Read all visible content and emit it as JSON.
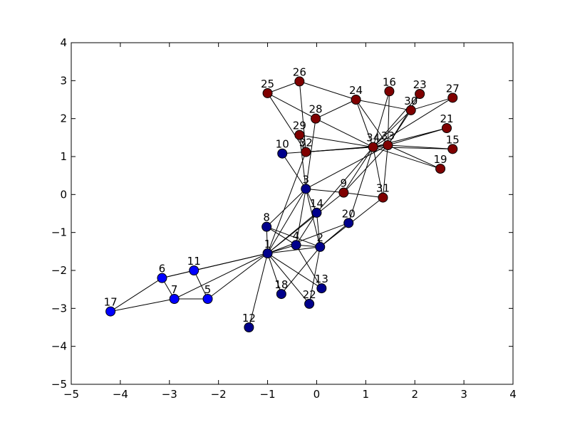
{
  "chart_data": {
    "type": "scatter",
    "xlim": [
      -5,
      4
    ],
    "ylim": [
      -5,
      4
    ],
    "x_ticks": [
      "−5",
      "−4",
      "−3",
      "−2",
      "−1",
      "0",
      "1",
      "2",
      "3",
      "4"
    ],
    "y_ticks": [
      "−5",
      "−4",
      "−3",
      "−2",
      "−1",
      "0",
      "1",
      "2",
      "3",
      "4"
    ],
    "grid": false,
    "colors": {
      "dark_blue": "#00008b",
      "blue": "#0000ff",
      "dark_red": "#7f0000"
    },
    "nodes": [
      {
        "id": "1",
        "x": -1.0,
        "y": -1.55,
        "group": "dark_blue"
      },
      {
        "id": "2",
        "x": 0.07,
        "y": -1.38,
        "group": "dark_blue"
      },
      {
        "id": "3",
        "x": -0.22,
        "y": 0.15,
        "group": "dark_blue"
      },
      {
        "id": "4",
        "x": -0.42,
        "y": -1.33,
        "group": "dark_blue"
      },
      {
        "id": "5",
        "x": -2.22,
        "y": -2.75,
        "group": "blue"
      },
      {
        "id": "6",
        "x": -3.15,
        "y": -2.2,
        "group": "blue"
      },
      {
        "id": "7",
        "x": -2.9,
        "y": -2.75,
        "group": "blue"
      },
      {
        "id": "8",
        "x": -1.02,
        "y": -0.85,
        "group": "dark_blue"
      },
      {
        "id": "9",
        "x": 0.55,
        "y": 0.05,
        "group": "dark_red"
      },
      {
        "id": "10",
        "x": -0.7,
        "y": 1.08,
        "group": "dark_blue"
      },
      {
        "id": "11",
        "x": -2.5,
        "y": -2.0,
        "group": "blue"
      },
      {
        "id": "12",
        "x": -1.38,
        "y": -3.5,
        "group": "dark_blue"
      },
      {
        "id": "13",
        "x": 0.1,
        "y": -2.47,
        "group": "dark_blue"
      },
      {
        "id": "14",
        "x": 0.0,
        "y": -0.48,
        "group": "dark_blue"
      },
      {
        "id": "15",
        "x": 2.77,
        "y": 1.2,
        "group": "dark_red"
      },
      {
        "id": "16",
        "x": 1.48,
        "y": 2.72,
        "group": "dark_red"
      },
      {
        "id": "17",
        "x": -4.2,
        "y": -3.08,
        "group": "blue"
      },
      {
        "id": "18",
        "x": -0.72,
        "y": -2.62,
        "group": "dark_blue"
      },
      {
        "id": "19",
        "x": 2.52,
        "y": 0.68,
        "group": "dark_red"
      },
      {
        "id": "20",
        "x": 0.65,
        "y": -0.75,
        "group": "dark_blue"
      },
      {
        "id": "21",
        "x": 2.65,
        "y": 1.75,
        "group": "dark_red"
      },
      {
        "id": "22",
        "x": -0.15,
        "y": -2.88,
        "group": "dark_blue"
      },
      {
        "id": "23",
        "x": 2.1,
        "y": 2.65,
        "group": "dark_red"
      },
      {
        "id": "24",
        "x": 0.8,
        "y": 2.5,
        "group": "dark_red"
      },
      {
        "id": "25",
        "x": -1.0,
        "y": 2.67,
        "group": "dark_red"
      },
      {
        "id": "26",
        "x": -0.35,
        "y": 2.98,
        "group": "dark_red"
      },
      {
        "id": "27",
        "x": 2.77,
        "y": 2.55,
        "group": "dark_red"
      },
      {
        "id": "28",
        "x": -0.02,
        "y": 2.0,
        "group": "dark_red"
      },
      {
        "id": "29",
        "x": -0.35,
        "y": 1.57,
        "group": "dark_red"
      },
      {
        "id": "30",
        "x": 1.92,
        "y": 2.22,
        "group": "dark_red"
      },
      {
        "id": "31",
        "x": 1.35,
        "y": -0.08,
        "group": "dark_red"
      },
      {
        "id": "32",
        "x": -0.22,
        "y": 1.12,
        "group": "dark_red"
      },
      {
        "id": "33",
        "x": 1.45,
        "y": 1.3,
        "group": "dark_red"
      },
      {
        "id": "34",
        "x": 1.15,
        "y": 1.25,
        "group": "dark_red"
      }
    ],
    "edges": [
      [
        "1",
        "2"
      ],
      [
        "1",
        "3"
      ],
      [
        "1",
        "4"
      ],
      [
        "1",
        "5"
      ],
      [
        "1",
        "6"
      ],
      [
        "1",
        "7"
      ],
      [
        "1",
        "8"
      ],
      [
        "1",
        "9"
      ],
      [
        "1",
        "11"
      ],
      [
        "1",
        "12"
      ],
      [
        "1",
        "13"
      ],
      [
        "1",
        "14"
      ],
      [
        "1",
        "18"
      ],
      [
        "1",
        "20"
      ],
      [
        "1",
        "22"
      ],
      [
        "1",
        "32"
      ],
      [
        "2",
        "3"
      ],
      [
        "2",
        "4"
      ],
      [
        "2",
        "8"
      ],
      [
        "2",
        "14"
      ],
      [
        "2",
        "18"
      ],
      [
        "2",
        "20"
      ],
      [
        "2",
        "22"
      ],
      [
        "2",
        "31"
      ],
      [
        "3",
        "4"
      ],
      [
        "3",
        "8"
      ],
      [
        "3",
        "9"
      ],
      [
        "3",
        "10"
      ],
      [
        "3",
        "14"
      ],
      [
        "3",
        "28"
      ],
      [
        "3",
        "29"
      ],
      [
        "3",
        "33"
      ],
      [
        "4",
        "8"
      ],
      [
        "4",
        "13"
      ],
      [
        "4",
        "14"
      ],
      [
        "5",
        "7"
      ],
      [
        "5",
        "11"
      ],
      [
        "6",
        "7"
      ],
      [
        "6",
        "11"
      ],
      [
        "6",
        "17"
      ],
      [
        "7",
        "17"
      ],
      [
        "9",
        "31"
      ],
      [
        "9",
        "33"
      ],
      [
        "9",
        "34"
      ],
      [
        "10",
        "34"
      ],
      [
        "14",
        "34"
      ],
      [
        "15",
        "33"
      ],
      [
        "15",
        "34"
      ],
      [
        "16",
        "33"
      ],
      [
        "16",
        "34"
      ],
      [
        "19",
        "33"
      ],
      [
        "19",
        "34"
      ],
      [
        "20",
        "34"
      ],
      [
        "21",
        "33"
      ],
      [
        "21",
        "34"
      ],
      [
        "23",
        "33"
      ],
      [
        "23",
        "34"
      ],
      [
        "24",
        "26"
      ],
      [
        "24",
        "28"
      ],
      [
        "24",
        "30"
      ],
      [
        "24",
        "33"
      ],
      [
        "24",
        "34"
      ],
      [
        "25",
        "26"
      ],
      [
        "25",
        "28"
      ],
      [
        "25",
        "32"
      ],
      [
        "26",
        "32"
      ],
      [
        "27",
        "30"
      ],
      [
        "27",
        "34"
      ],
      [
        "28",
        "34"
      ],
      [
        "29",
        "32"
      ],
      [
        "29",
        "34"
      ],
      [
        "30",
        "33"
      ],
      [
        "30",
        "34"
      ],
      [
        "31",
        "33"
      ],
      [
        "31",
        "34"
      ],
      [
        "32",
        "33"
      ],
      [
        "32",
        "34"
      ],
      [
        "33",
        "34"
      ]
    ]
  }
}
